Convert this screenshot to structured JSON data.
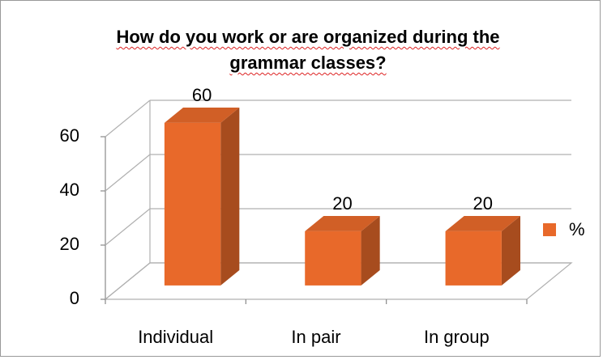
{
  "chart_data": {
    "type": "bar3d",
    "title": "How do you work or are organized during the grammar classes?",
    "categories": [
      "Individual",
      "In pair",
      "In group"
    ],
    "series": [
      {
        "name": "%",
        "color": "#e8692a",
        "values": [
          60,
          20,
          20
        ]
      }
    ],
    "ylim": [
      0,
      60
    ],
    "yticks": [
      0,
      20,
      40,
      60
    ],
    "grid": true,
    "legend": "right"
  }
}
